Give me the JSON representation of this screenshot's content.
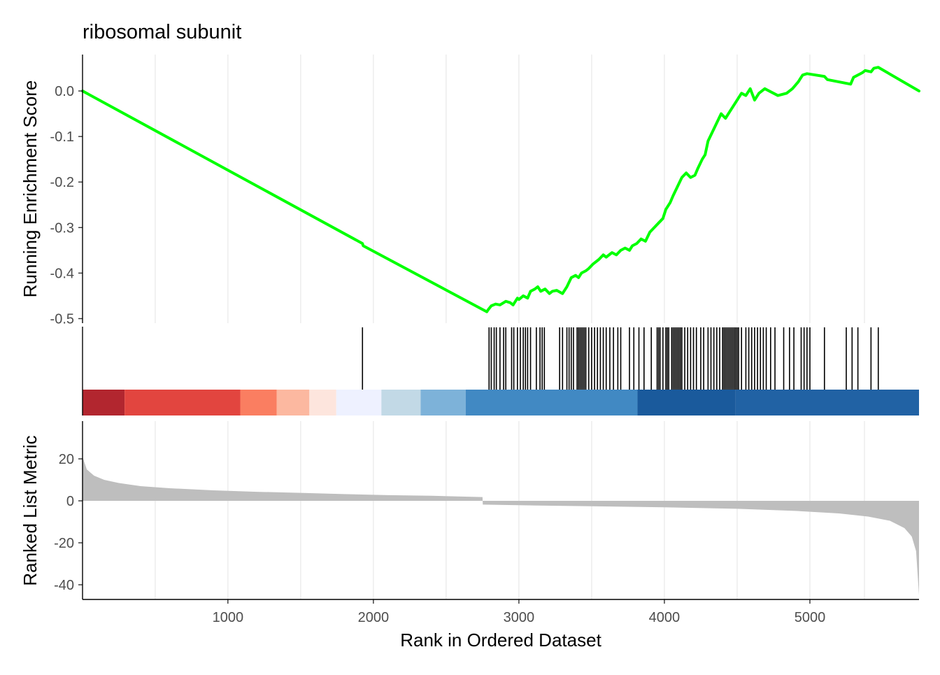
{
  "chart_data": {
    "type": "line",
    "title": "ribosomal subunit",
    "xlabel": "Rank in Ordered Dataset",
    "xlim": [
      1,
      5750
    ],
    "x_ticks": [
      1000,
      2000,
      3000,
      4000,
      5000
    ],
    "x_tick_labels": [
      "1000",
      "2000",
      "3000",
      "4000",
      "5000"
    ],
    "grid": true,
    "panels": {
      "enrichment": {
        "ylabel": "Running Enrichment Score",
        "ylim": [
          -0.51,
          0.08
        ],
        "y_ticks": [
          0.0,
          -0.1,
          -0.2,
          -0.3,
          -0.4,
          -0.5
        ],
        "y_tick_labels": [
          "0.0",
          "-0.1",
          "-0.2",
          "-0.3",
          "-0.4",
          "-0.5"
        ],
        "line_color": "#00FF00",
        "series": [
          {
            "x": [
              1,
              1925,
              1930,
              2780,
              2790,
              2810,
              2840,
              2870,
              2910,
              2940,
              2960,
              2990,
              3000,
              3030,
              3060,
              3080,
              3110,
              3130,
              3150,
              3180,
              3210,
              3230,
              3260,
              3300,
              3330,
              3360,
              3390,
              3410,
              3430,
              3460,
              3480,
              3510,
              3550,
              3580,
              3600,
              3640,
              3670,
              3700,
              3730,
              3760,
              3780,
              3810,
              3840,
              3870,
              3900,
              3930,
              3960,
              3990,
              4010,
              4040,
              4060,
              4090,
              4120,
              4150,
              4180,
              4210,
              4230,
              4260,
              4280,
              4300,
              4330,
              4360,
              4390,
              4420,
              4450,
              4470,
              4500,
              4530,
              4560,
              4590,
              4620,
              4650,
              4690,
              4780,
              4840,
              4880,
              4920,
              4950,
              4980,
              5100,
              5120,
              5280,
              5300,
              5360,
              5380,
              5420,
              5440,
              5470,
              5750
            ],
            "y": [
              0.0,
              -0.335,
              -0.34,
              -0.485,
              -0.48,
              -0.472,
              -0.468,
              -0.47,
              -0.462,
              -0.465,
              -0.47,
              -0.455,
              -0.458,
              -0.45,
              -0.455,
              -0.44,
              -0.435,
              -0.43,
              -0.44,
              -0.435,
              -0.445,
              -0.44,
              -0.438,
              -0.445,
              -0.43,
              -0.41,
              -0.405,
              -0.41,
              -0.4,
              -0.395,
              -0.39,
              -0.38,
              -0.37,
              -0.36,
              -0.365,
              -0.355,
              -0.36,
              -0.35,
              -0.345,
              -0.35,
              -0.34,
              -0.335,
              -0.325,
              -0.33,
              -0.31,
              -0.3,
              -0.29,
              -0.28,
              -0.26,
              -0.245,
              -0.23,
              -0.21,
              -0.19,
              -0.18,
              -0.19,
              -0.185,
              -0.17,
              -0.15,
              -0.14,
              -0.11,
              -0.09,
              -0.07,
              -0.05,
              -0.06,
              -0.045,
              -0.035,
              -0.02,
              -0.005,
              -0.01,
              0.005,
              -0.02,
              -0.005,
              0.005,
              -0.01,
              -0.005,
              0.005,
              0.02,
              0.035,
              0.038,
              0.032,
              0.025,
              0.015,
              0.03,
              0.04,
              0.045,
              0.042,
              0.05,
              0.052,
              0.0
            ]
          }
        ]
      },
      "hits": {
        "hit_ranks": [
          1925,
          2795,
          2810,
          2830,
          2845,
          2870,
          2895,
          2910,
          2950,
          2965,
          2990,
          3010,
          3030,
          3045,
          3060,
          3080,
          3120,
          3145,
          3160,
          3175,
          3280,
          3300,
          3330,
          3345,
          3360,
          3375,
          3400,
          3410,
          3420,
          3430,
          3440,
          3450,
          3460,
          3480,
          3500,
          3520,
          3540,
          3560,
          3580,
          3600,
          3625,
          3650,
          3680,
          3700,
          3760,
          3790,
          3825,
          3860,
          3910,
          3950,
          3960,
          3970,
          3990,
          4010,
          4020,
          4030,
          4050,
          4060,
          4070,
          4080,
          4090,
          4100,
          4110,
          4120,
          4140,
          4160,
          4180,
          4200,
          4220,
          4250,
          4270,
          4300,
          4320,
          4340,
          4360,
          4380,
          4400,
          4410,
          4420,
          4430,
          4440,
          4450,
          4460,
          4470,
          4480,
          4490,
          4500,
          4510,
          4530,
          4560,
          4580,
          4600,
          4620,
          4640,
          4660,
          4680,
          4700,
          4730,
          4760,
          4820,
          4860,
          4890,
          4940,
          4960,
          4980,
          5000,
          5100,
          5250,
          5290,
          5330,
          5420,
          5470
        ]
      },
      "color_bar": {
        "segments": [
          {
            "start": 1,
            "end": 290,
            "color": "#B2262F"
          },
          {
            "start": 290,
            "end": 1085,
            "color": "#E2453F"
          },
          {
            "start": 1085,
            "end": 1335,
            "color": "#FA7E61"
          },
          {
            "start": 1335,
            "end": 1560,
            "color": "#FCB8A0"
          },
          {
            "start": 1560,
            "end": 1745,
            "color": "#FDE5DD"
          },
          {
            "start": 1745,
            "end": 2055,
            "color": "#EEF1FF"
          },
          {
            "start": 2055,
            "end": 2325,
            "color": "#C2D9E6"
          },
          {
            "start": 2325,
            "end": 2635,
            "color": "#7DB2D9"
          },
          {
            "start": 2635,
            "end": 3815,
            "color": "#4189C3"
          },
          {
            "start": 3815,
            "end": 4490,
            "color": "#1A5A9C"
          },
          {
            "start": 4490,
            "end": 5750,
            "color": "#2162A4"
          }
        ]
      },
      "ranked_metric": {
        "ylabel": "Ranked List Metric",
        "ylim": [
          -47,
          38
        ],
        "y_ticks": [
          20,
          0,
          -20,
          -40
        ],
        "y_tick_labels": [
          "20",
          "0",
          "-20",
          "-40"
        ],
        "fill_color": "#BEBEBE",
        "series": [
          {
            "x": [
              1,
              30,
              80,
              150,
              250,
              400,
              600,
              900,
              1200,
              1500,
              1800,
              2100,
              2400,
              2750,
              2752,
              3000,
              3500,
              4000,
              4500,
              4900,
              5200,
              5400,
              5550,
              5650,
              5700,
              5730,
              5750
            ],
            "y": [
              21,
              15,
              12,
              10,
              8.5,
              7,
              6,
              5,
              4.3,
              3.8,
              3.2,
              2.7,
              2.4,
              1.8,
              -1.8,
              -2.1,
              -2.6,
              -3.1,
              -3.8,
              -4.8,
              -6,
              -7.5,
              -9.5,
              -13,
              -17,
              -24,
              -45
            ]
          }
        ]
      }
    }
  }
}
